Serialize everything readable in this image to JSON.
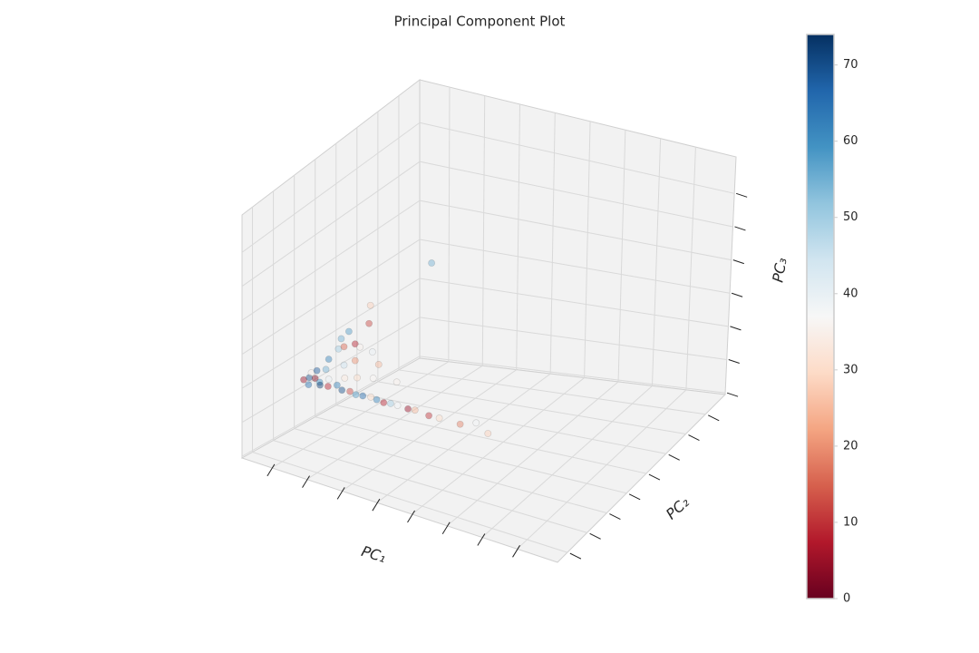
{
  "chart_data": {
    "type": "scatter3d",
    "title": "Principal Component Plot",
    "xlabel": "PC₁",
    "ylabel": "PC₂",
    "zlabel": "PC₃",
    "x": [
      -0.7,
      -0.6,
      -0.5,
      -0.4,
      -0.3,
      -0.2,
      -0.6,
      -0.5,
      -0.3,
      0.0,
      -0.1,
      0.2,
      0.4,
      0.6,
      0.8,
      1.0,
      1.2,
      1.4,
      1.6,
      1.8,
      2.0,
      2.3,
      2.5,
      2.9,
      3.2,
      3.8,
      4.6,
      4.2,
      0.3,
      0.6,
      1.0,
      0.1,
      0.3,
      -0.4,
      -0.3,
      -0.4,
      -0.2,
      0.0,
      0.2,
      -0.3,
      0.1,
      -0.1,
      0.7,
      0.5,
      1.5,
      0.8
    ],
    "y": [
      2.2,
      2.3,
      2.1,
      2.25,
      2.3,
      2.15,
      2.4,
      2.5,
      2.6,
      2.2,
      2.4,
      2.3,
      2.2,
      2.25,
      2.2,
      2.2,
      2.25,
      2.2,
      2.2,
      2.2,
      2.2,
      2.2,
      2.2,
      2.2,
      2.2,
      2.2,
      2.2,
      2.3,
      2.5,
      2.6,
      2.7,
      2.8,
      3.0,
      2.9,
      3.2,
      3.5,
      3.3,
      3.5,
      3.4,
      3.7,
      4.0,
      4.4,
      6.0,
      3.5,
      3.0,
      3.3
    ],
    "z": [
      1.3,
      1.35,
      1.25,
      1.4,
      1.3,
      1.3,
      1.45,
      1.5,
      1.55,
      1.3,
      1.4,
      1.35,
      1.3,
      1.3,
      1.28,
      1.3,
      1.3,
      1.3,
      1.27,
      1.3,
      1.3,
      1.28,
      1.3,
      1.25,
      1.26,
      1.25,
      1.2,
      1.35,
      1.5,
      1.55,
      1.6,
      1.7,
      1.8,
      1.7,
      1.9,
      2.05,
      1.95,
      2.0,
      2.0,
      2.2,
      2.4,
      2.7,
      3.4,
      1.9,
      1.5,
      1.7
    ],
    "values": [
      5,
      70,
      65,
      3,
      60,
      72,
      35,
      68,
      55,
      8,
      40,
      62,
      70,
      12,
      58,
      66,
      30,
      62,
      8,
      50,
      38,
      5,
      25,
      10,
      30,
      18,
      28,
      38,
      33,
      30,
      36,
      45,
      20,
      62,
      50,
      55,
      15,
      8,
      35,
      58,
      12,
      28,
      55,
      40,
      35,
      25
    ],
    "xlim": [
      -0.85,
      8.15
    ],
    "ylim": [
      -0.5,
      8.0
    ],
    "zlim": [
      -0.05,
      7.1
    ],
    "xticks": [
      0,
      1,
      2,
      3,
      4,
      5,
      6,
      7
    ],
    "yticks": [
      0,
      1,
      2,
      3,
      4,
      5,
      6,
      7
    ],
    "zticks": [
      0,
      1,
      2,
      3,
      4,
      5,
      6
    ],
    "grid": true,
    "colormap": "RdBu",
    "clim": [
      0,
      74
    ],
    "cticks": [
      0,
      10,
      20,
      30,
      40,
      50,
      60,
      70
    ]
  }
}
